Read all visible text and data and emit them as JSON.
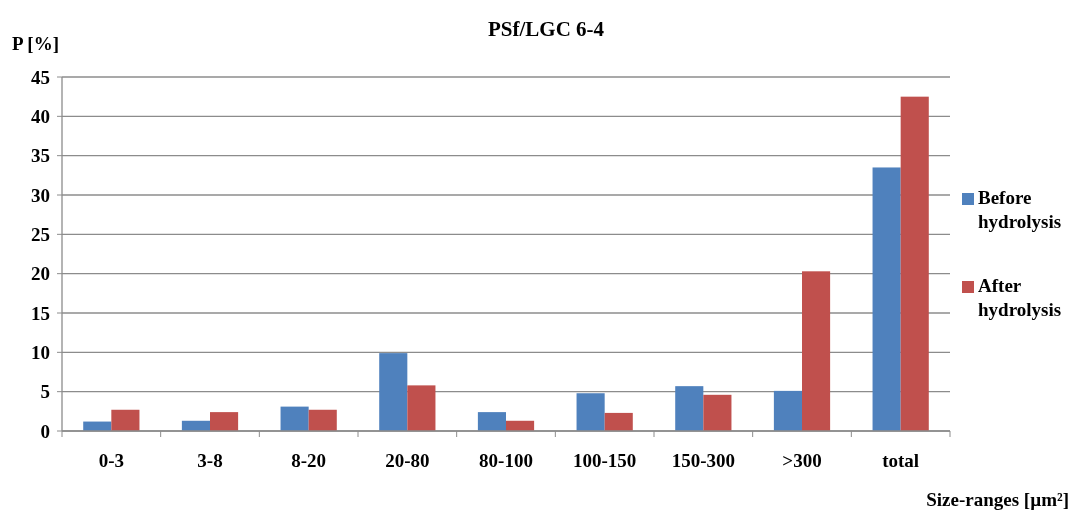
{
  "chart_data": {
    "type": "bar",
    "title": "PSf/LGC 6-4",
    "xlabel": "Size-ranges [µm²]",
    "ylabel": "P [%]",
    "categories": [
      "0-3",
      "3-8",
      "8-20",
      "20-80",
      "80-100",
      "100-150",
      "150-300",
      ">300",
      "total"
    ],
    "series": [
      {
        "name": "Before hydrolysis",
        "color": "#4f81bd",
        "values": [
          1.2,
          1.3,
          3.1,
          9.9,
          2.4,
          4.8,
          5.7,
          5.1,
          33.5
        ]
      },
      {
        "name": "After hydrolysis",
        "color": "#c0504d",
        "values": [
          2.7,
          2.4,
          2.7,
          5.8,
          1.3,
          2.3,
          4.6,
          20.3,
          42.5
        ]
      }
    ],
    "ylim": [
      0,
      45
    ],
    "yticks": [
      0,
      5,
      10,
      15,
      20,
      25,
      30,
      35,
      40,
      45
    ],
    "grid": "y",
    "legend": "right"
  }
}
